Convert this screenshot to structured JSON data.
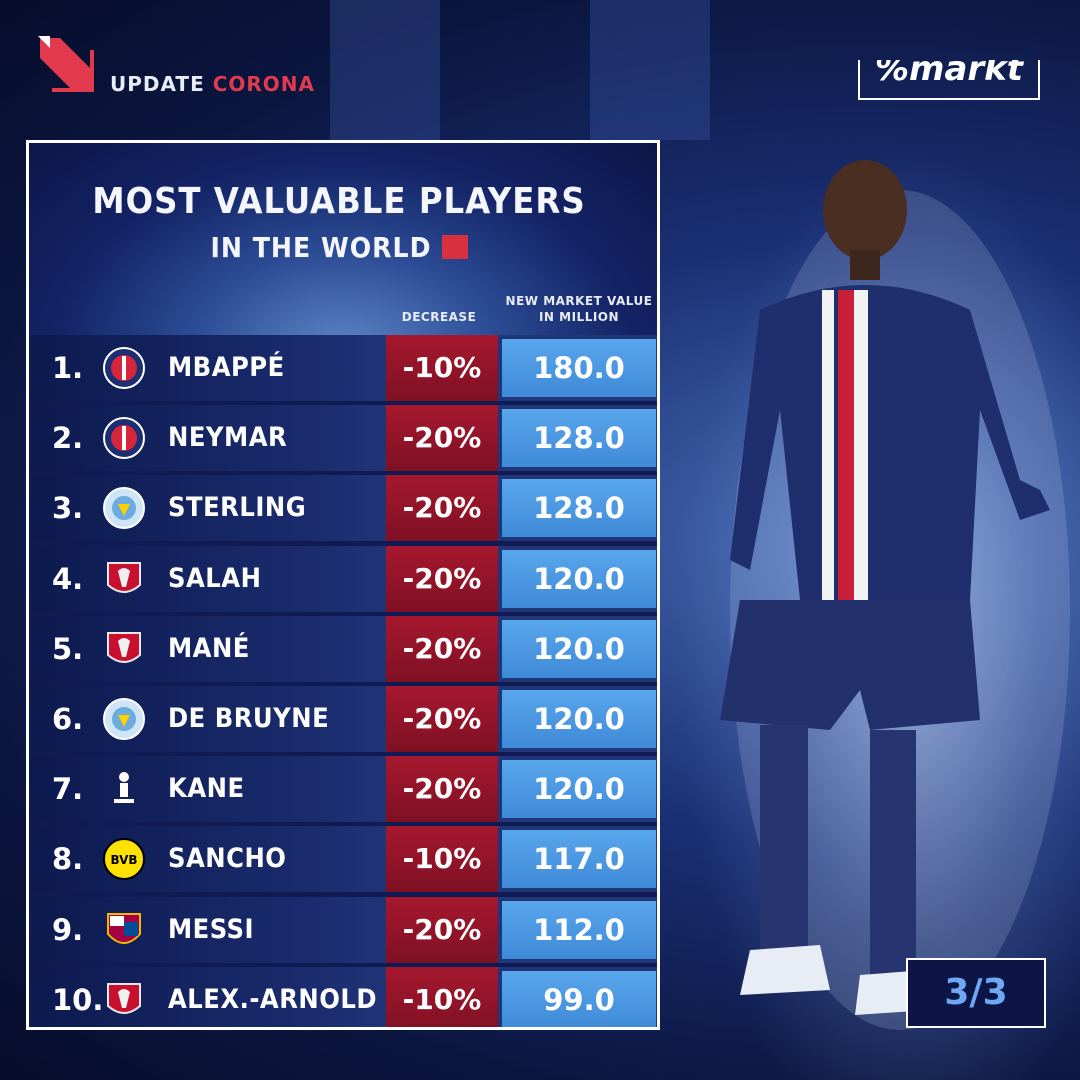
{
  "brand": {
    "label_part1": "UPDATE",
    "label_part2": "CORONA",
    "corner_logo_text": "%markt"
  },
  "panel": {
    "title_line1": "MOST VALUABLE PLAYERS",
    "title_line2": "IN THE WORLD",
    "col_decrease": "DECREASE",
    "col_value_line1": "NEW MARKET VALUE",
    "col_value_line2": "IN MILLION"
  },
  "colors": {
    "decrease": "#a6182e",
    "value": "#4a97e0",
    "background": "#0f1b52"
  },
  "page_indicator": "3/3",
  "chart_data": {
    "type": "table",
    "title": "MOST VALUABLE PLAYERS IN THE WORLD",
    "columns": [
      "",
      "",
      "DECREASE",
      "NEW MARKET VALUE IN MILLION"
    ],
    "rows": [
      {
        "rank": "1.",
        "player": "MBAPPÉ",
        "club_crest": "psg-crest-icon",
        "decrease": "-10%",
        "value": "180.0"
      },
      {
        "rank": "2.",
        "player": "NEYMAR",
        "club_crest": "psg-crest-icon",
        "decrease": "-20%",
        "value": "128.0"
      },
      {
        "rank": "3.",
        "player": "STERLING",
        "club_crest": "man-city-crest-icon",
        "decrease": "-20%",
        "value": "128.0"
      },
      {
        "rank": "4.",
        "player": "SALAH",
        "club_crest": "liverpool-crest-icon",
        "decrease": "-20%",
        "value": "120.0"
      },
      {
        "rank": "5.",
        "player": "MANÉ",
        "club_crest": "liverpool-crest-icon",
        "decrease": "-20%",
        "value": "120.0"
      },
      {
        "rank": "6.",
        "player": "DE BRUYNE",
        "club_crest": "man-city-crest-icon",
        "decrease": "-20%",
        "value": "120.0"
      },
      {
        "rank": "7.",
        "player": "KANE",
        "club_crest": "tottenham-crest-icon",
        "decrease": "-20%",
        "value": "120.0"
      },
      {
        "rank": "8.",
        "player": "SANCHO",
        "club_crest": "bvb-crest-icon",
        "decrease": "-10%",
        "value": "117.0"
      },
      {
        "rank": "9.",
        "player": "MESSI",
        "club_crest": "barcelona-crest-icon",
        "decrease": "-20%",
        "value": "112.0"
      },
      {
        "rank": "10.",
        "player": "ALEX.-ARNOLD",
        "club_crest": "liverpool-crest-icon",
        "decrease": "-10%",
        "value": "99.0"
      }
    ]
  }
}
